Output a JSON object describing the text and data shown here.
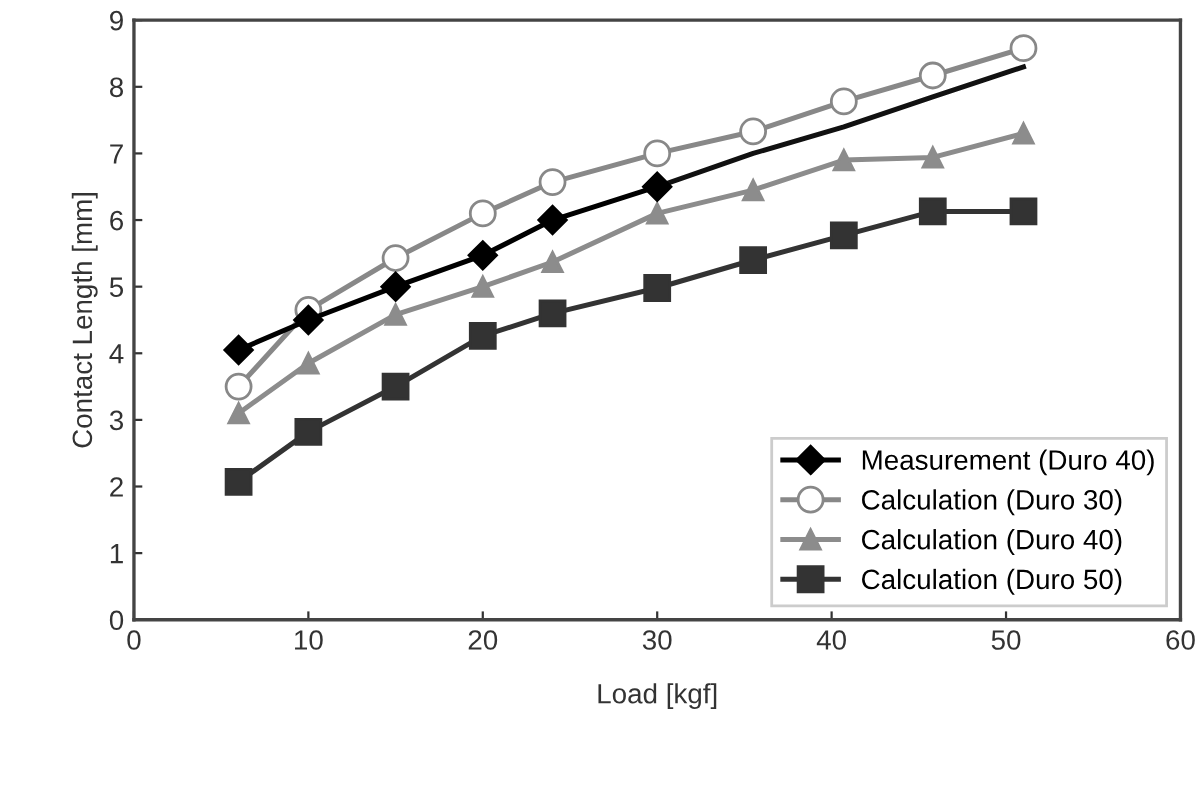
{
  "chart_data": {
    "type": "line",
    "xlabel": "Load [kgf]",
    "ylabel": "Contact Length [mm]",
    "xlim": [
      0,
      60
    ],
    "xticks": [
      0,
      10,
      20,
      30,
      40,
      50,
      60
    ],
    "ylim": [
      0,
      9
    ],
    "yticks": [
      0,
      1,
      2,
      3,
      4,
      5,
      6,
      7,
      8,
      9
    ],
    "grid": false,
    "legend": "bottom right",
    "series": [
      {
        "name": "Measurement (Duro 40)",
        "color": "#000000",
        "marker": "diamond",
        "x": [
          6,
          10,
          15,
          20,
          24,
          30
        ],
        "values": [
          4.05,
          4.5,
          5.0,
          5.47,
          6.0,
          6.5
        ]
      },
      {
        "name": "Calculation (Duro 30)",
        "color": "#888888",
        "marker": "circle",
        "x": [
          6,
          10,
          15,
          20,
          24,
          30,
          35.5,
          40.7,
          45.8,
          51
        ],
        "values": [
          3.5,
          4.65,
          5.43,
          6.1,
          6.57,
          7.0,
          7.33,
          7.78,
          8.17,
          8.58
        ]
      },
      {
        "name": "Calculation (Duro 40)",
        "color": "#8c8c8c",
        "marker": "triangle",
        "x": [
          6,
          10,
          15,
          20,
          24,
          30,
          35.5,
          40.7,
          45.8,
          51
        ],
        "values": [
          3.1,
          3.85,
          4.58,
          5.0,
          5.37,
          6.1,
          6.45,
          6.9,
          6.94,
          7.3
        ]
      },
      {
        "name": "Calculation (Duro 50)",
        "color": "#333333",
        "marker": "square",
        "x": [
          6,
          10,
          15,
          20,
          24,
          30,
          35.5,
          40.7,
          45.8,
          51
        ],
        "values": [
          2.07,
          2.82,
          3.5,
          4.26,
          4.6,
          4.98,
          5.4,
          5.77,
          6.13,
          6.13
        ]
      },
      {
        "color": "#111111",
        "marker": "none",
        "x": [
          30,
          35.5,
          40.7,
          45.8,
          51
        ],
        "values": [
          6.5,
          7.0,
          7.4,
          7.85,
          8.3
        ]
      }
    ]
  }
}
